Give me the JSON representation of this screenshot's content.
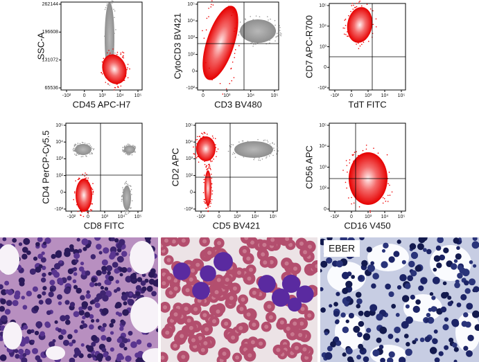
{
  "panels": [
    {
      "ylabel": "SSC-A",
      "xlabel": "CD45 APC-H7",
      "yticks": [
        "262144",
        "196608",
        "131072",
        "65536"
      ],
      "xticks": [
        "-10²",
        "0",
        "10³",
        "10⁴",
        "10⁵"
      ]
    },
    {
      "ylabel": "CytoCD3 BV421",
      "xlabel": "CD3 BV480",
      "yticks": [
        "10⁵",
        "10⁴",
        "10³",
        "10²",
        "0",
        "-10²"
      ],
      "xticks": [
        "0",
        "10³",
        "10⁴",
        "10⁵"
      ]
    },
    {
      "ylabel": "CD7 APC-R700",
      "xlabel": "TdT FITC",
      "yticks": [
        "10⁵",
        "10⁴",
        "10³",
        "0",
        "-10²"
      ],
      "xticks": [
        "-10²",
        "0",
        "10³",
        "10⁴",
        "10⁵"
      ]
    },
    {
      "ylabel": "CD4 PerCP-Cy5.5",
      "xlabel": "CD8 FITC",
      "yticks": [
        "10⁵",
        "10⁴",
        "10³",
        "10²",
        "0",
        "-10²"
      ],
      "xticks": [
        "-10²",
        "0",
        "10³",
        "10⁴",
        "10⁵"
      ]
    },
    {
      "ylabel": "CD2 APC",
      "xlabel": "CD5 BV421",
      "yticks": [
        "10⁵",
        "10⁴",
        "10³",
        "10²",
        "0",
        "-10²"
      ],
      "xticks": [
        "-10²",
        "0",
        "10³",
        "10⁴",
        "10⁵"
      ]
    },
    {
      "ylabel": "CD56 APC",
      "xlabel": "CD16 V450",
      "yticks": [
        "10⁵",
        "10⁴",
        "10³",
        "10²",
        "0"
      ],
      "xticks": [
        "-10²",
        "0",
        "10³",
        "10⁴",
        "10⁵"
      ]
    }
  ],
  "images": [
    {
      "label": "EBER"
    }
  ]
}
